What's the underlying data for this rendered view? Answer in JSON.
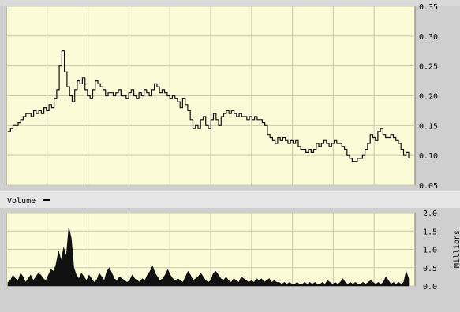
{
  "chart_data": [
    {
      "type": "line",
      "title": "",
      "xlabel": "",
      "ylabel": "",
      "ylim": [
        0.05,
        0.35
      ],
      "y_ticks": [
        "0.35",
        "0.30",
        "0.25",
        "0.20",
        "0.15",
        "0.10",
        "0.05"
      ],
      "grid": true,
      "series": [
        {
          "values": [
            0.14,
            0.145,
            0.15,
            0.15,
            0.155,
            0.16,
            0.165,
            0.17,
            0.17,
            0.165,
            0.175,
            0.17,
            0.175,
            0.17,
            0.18,
            0.175,
            0.185,
            0.18,
            0.195,
            0.21,
            0.25,
            0.275,
            0.24,
            0.215,
            0.2,
            0.19,
            0.21,
            0.225,
            0.22,
            0.23,
            0.21,
            0.2,
            0.195,
            0.21,
            0.225,
            0.22,
            0.215,
            0.21,
            0.2,
            0.205,
            0.205,
            0.2,
            0.205,
            0.21,
            0.2,
            0.2,
            0.195,
            0.205,
            0.21,
            0.2,
            0.195,
            0.205,
            0.2,
            0.21,
            0.205,
            0.2,
            0.21,
            0.22,
            0.215,
            0.205,
            0.21,
            0.205,
            0.2,
            0.195,
            0.2,
            0.195,
            0.19,
            0.18,
            0.195,
            0.185,
            0.175,
            0.16,
            0.145,
            0.15,
            0.145,
            0.16,
            0.165,
            0.15,
            0.145,
            0.16,
            0.17,
            0.16,
            0.15,
            0.165,
            0.17,
            0.175,
            0.17,
            0.175,
            0.17,
            0.165,
            0.17,
            0.165,
            0.165,
            0.16,
            0.165,
            0.16,
            0.165,
            0.16,
            0.16,
            0.155,
            0.15,
            0.135,
            0.13,
            0.125,
            0.12,
            0.13,
            0.125,
            0.13,
            0.125,
            0.12,
            0.125,
            0.12,
            0.125,
            0.115,
            0.11,
            0.11,
            0.105,
            0.11,
            0.105,
            0.11,
            0.12,
            0.115,
            0.12,
            0.125,
            0.12,
            0.115,
            0.12,
            0.125,
            0.12,
            0.12,
            0.115,
            0.11,
            0.1,
            0.095,
            0.09,
            0.09,
            0.095,
            0.095,
            0.1,
            0.11,
            0.12,
            0.135,
            0.13,
            0.125,
            0.14,
            0.145,
            0.135,
            0.13,
            0.13,
            0.135,
            0.13,
            0.125,
            0.12,
            0.11,
            0.1,
            0.105,
            0.095
          ]
        }
      ]
    },
    {
      "type": "area",
      "title": "",
      "label": "Volume",
      "ylabel": "Millions",
      "ylim": [
        0.0,
        2.0
      ],
      "y_ticks": [
        "2.0",
        "1.5",
        "1.0",
        "0.5",
        "0.0"
      ],
      "grid": true,
      "series": [
        {
          "values": [
            0.1,
            0.15,
            0.3,
            0.2,
            0.15,
            0.35,
            0.25,
            0.1,
            0.2,
            0.3,
            0.15,
            0.25,
            0.35,
            0.3,
            0.2,
            0.15,
            0.3,
            0.45,
            0.4,
            0.6,
            0.95,
            0.7,
            1.05,
            0.8,
            1.6,
            1.3,
            0.5,
            0.3,
            0.2,
            0.35,
            0.25,
            0.15,
            0.3,
            0.2,
            0.1,
            0.15,
            0.35,
            0.25,
            0.15,
            0.4,
            0.5,
            0.35,
            0.2,
            0.15,
            0.25,
            0.2,
            0.15,
            0.1,
            0.15,
            0.3,
            0.2,
            0.15,
            0.1,
            0.2,
            0.15,
            0.3,
            0.4,
            0.55,
            0.35,
            0.25,
            0.15,
            0.2,
            0.3,
            0.45,
            0.3,
            0.2,
            0.15,
            0.2,
            0.15,
            0.1,
            0.25,
            0.4,
            0.3,
            0.15,
            0.2,
            0.25,
            0.35,
            0.25,
            0.15,
            0.1,
            0.15,
            0.35,
            0.4,
            0.3,
            0.2,
            0.15,
            0.25,
            0.15,
            0.1,
            0.2,
            0.15,
            0.1,
            0.25,
            0.2,
            0.15,
            0.1,
            0.15,
            0.1,
            0.2,
            0.15,
            0.2,
            0.1,
            0.15,
            0.2,
            0.1,
            0.15,
            0.1,
            0.1,
            0.05,
            0.1,
            0.05,
            0.1,
            0.05,
            0.05,
            0.1,
            0.05,
            0.05,
            0.1,
            0.05,
            0.1,
            0.05,
            0.1,
            0.05,
            0.05,
            0.1,
            0.05,
            0.15,
            0.1,
            0.05,
            0.1,
            0.05,
            0.1,
            0.2,
            0.1,
            0.05,
            0.1,
            0.05,
            0.1,
            0.05,
            0.05,
            0.1,
            0.05,
            0.1,
            0.15,
            0.1,
            0.05,
            0.1,
            0.05,
            0.1,
            0.25,
            0.15,
            0.05,
            0.1,
            0.05,
            0.1,
            0.05,
            0.1,
            0.4,
            0.2
          ]
        }
      ]
    }
  ],
  "volume_legend_label": "Volume",
  "volume_axis_unit": "Millions"
}
